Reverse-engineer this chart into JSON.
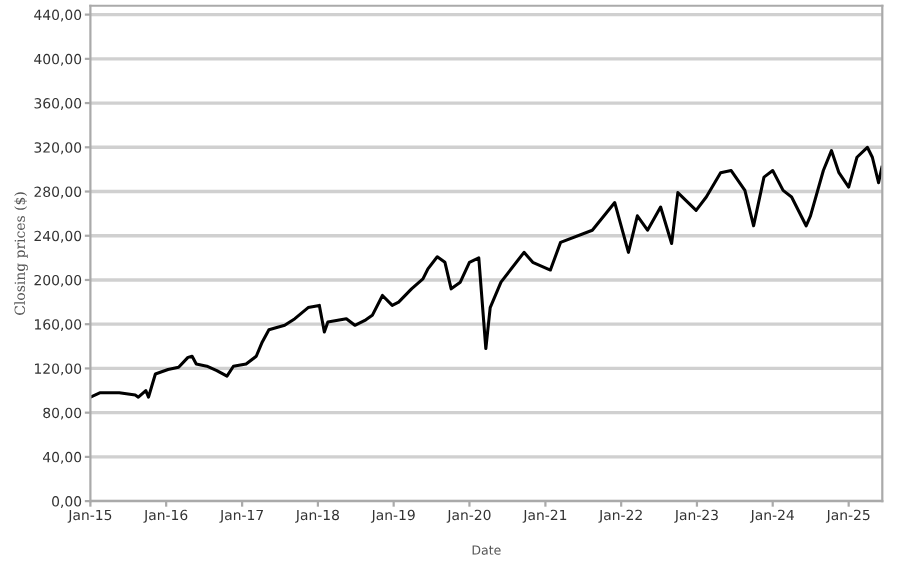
{
  "chart_data": {
    "type": "line",
    "xlabel": "Date",
    "ylabel": "Closing prices ($)",
    "x": [
      "2015-01-01",
      "2015-02-15",
      "2015-05-20",
      "2015-08-05",
      "2015-08-20",
      "2015-09-25",
      "2015-10-08",
      "2015-10-22",
      "2015-11-10",
      "2016-01-10",
      "2016-03-01",
      "2016-04-15",
      "2016-05-05",
      "2016-05-25",
      "2016-07-15",
      "2016-09-01",
      "2016-10-20",
      "2016-11-20",
      "2017-01-20",
      "2017-03-10",
      "2017-04-08",
      "2017-05-10",
      "2017-07-25",
      "2017-09-12",
      "2017-11-15",
      "2018-01-08",
      "2018-02-01",
      "2018-02-18",
      "2018-05-18",
      "2018-06-28",
      "2018-08-20",
      "2018-09-20",
      "2018-11-08",
      "2018-12-25",
      "2019-01-25",
      "2019-03-28",
      "2019-05-22",
      "2019-06-15",
      "2019-07-30",
      "2019-09-05",
      "2019-10-05",
      "2019-11-18",
      "2020-01-01",
      "2020-02-15",
      "2020-03-20",
      "2020-04-10",
      "2020-06-01",
      "2020-09-20",
      "2020-11-01",
      "2021-01-25",
      "2021-03-15",
      "2021-08-15",
      "2021-12-01",
      "2022-02-05",
      "2022-03-20",
      "2022-05-08",
      "2022-07-10",
      "2022-09-01",
      "2022-10-01",
      "2022-12-28",
      "2023-02-15",
      "2023-04-25",
      "2023-06-15",
      "2023-08-20",
      "2023-10-01",
      "2023-11-20",
      "2024-01-01",
      "2024-02-20",
      "2024-04-01",
      "2024-06-10",
      "2024-07-01",
      "2024-09-01",
      "2024-10-10",
      "2024-11-15",
      "2025-01-01",
      "2025-02-10",
      "2025-04-01",
      "2025-04-25",
      "2025-05-25",
      "2025-06-10"
    ],
    "series": [
      {
        "color": "#000000",
        "values": [
          94,
          98,
          98,
          96,
          94,
          100,
          94,
          103,
          115,
          119,
          121,
          130,
          131,
          124,
          122,
          118,
          113,
          122,
          124,
          131,
          144,
          155,
          159,
          165,
          175,
          177,
          153,
          162,
          165,
          159,
          164,
          168,
          186,
          177,
          180,
          192,
          201,
          210,
          221,
          216,
          192,
          198,
          216,
          220,
          138,
          175,
          198,
          225,
          216,
          209,
          234,
          245,
          270,
          225,
          258,
          245,
          266,
          233,
          279,
          263,
          275,
          297,
          299,
          281,
          249,
          293,
          299,
          281,
          275,
          249,
          258,
          299,
          317,
          297,
          284,
          311,
          320,
          311,
          288,
          302
        ]
      }
    ],
    "xlim": [
      "2015-01-01",
      "2025-06-12"
    ],
    "xticks": [
      {
        "value": "2015-01-01",
        "label": "Jan-15"
      },
      {
        "value": "2016-01-01",
        "label": "Jan-16"
      },
      {
        "value": "2017-01-01",
        "label": "Jan-17"
      },
      {
        "value": "2018-01-01",
        "label": "Jan-18"
      },
      {
        "value": "2019-01-01",
        "label": "Jan-19"
      },
      {
        "value": "2020-01-01",
        "label": "Jan-20"
      },
      {
        "value": "2021-01-01",
        "label": "Jan-21"
      },
      {
        "value": "2022-01-01",
        "label": "Jan-22"
      },
      {
        "value": "2023-01-01",
        "label": "Jan-23"
      },
      {
        "value": "2024-01-01",
        "label": "Jan-24"
      },
      {
        "value": "2025-01-01",
        "label": "Jan-25"
      }
    ],
    "ylim": [
      0,
      448
    ],
    "yticks": [
      {
        "value": 0,
        "label": "0,00"
      },
      {
        "value": 40,
        "label": "40,00"
      },
      {
        "value": 80,
        "label": "80,00"
      },
      {
        "value": 120,
        "label": "120,00"
      },
      {
        "value": 160,
        "label": "160,00"
      },
      {
        "value": 200,
        "label": "200,00"
      },
      {
        "value": 240,
        "label": "240,00"
      },
      {
        "value": 280,
        "label": "280,00"
      },
      {
        "value": 320,
        "label": "320,00"
      },
      {
        "value": 360,
        "label": "360,00"
      },
      {
        "value": 400,
        "label": "400,00"
      },
      {
        "value": 440,
        "label": "440,00"
      }
    ],
    "grid": "y",
    "marker": "none",
    "line_style": "solid"
  }
}
